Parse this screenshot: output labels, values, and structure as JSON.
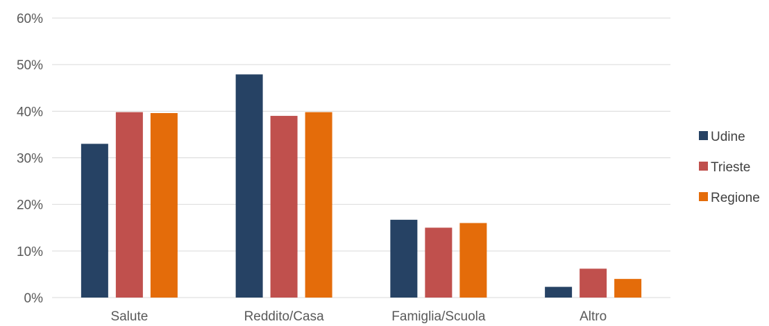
{
  "chart_data": {
    "type": "bar",
    "categories": [
      "Salute",
      "Reddito/Casa",
      "Famiglia/Scuola",
      "Altro"
    ],
    "series": [
      {
        "name": "Udine",
        "color": "#264264",
        "values": [
          33,
          47.9,
          16.7,
          2.3
        ]
      },
      {
        "name": "Trieste",
        "color": "#c0504d",
        "values": [
          39.8,
          39,
          15,
          6.2
        ]
      },
      {
        "name": "Regione",
        "color": "#e46c0a",
        "values": [
          39.6,
          39.8,
          16,
          4
        ]
      }
    ],
    "ylim": [
      0,
      60
    ],
    "yticks": [
      "0%",
      "10%",
      "20%",
      "30%",
      "40%",
      "50%",
      "60%"
    ],
    "grid": true,
    "legend_position": "right",
    "title": "",
    "xlabel": "",
    "ylabel": ""
  }
}
